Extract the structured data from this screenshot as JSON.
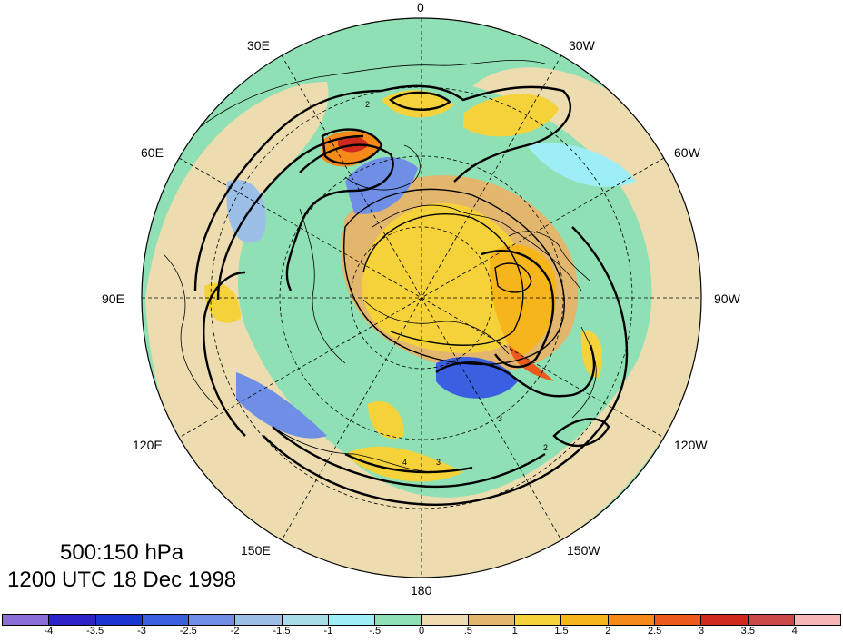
{
  "caption": {
    "level": "500:150 hPa",
    "time": "1200 UTC 18 Dec 1998"
  },
  "longitude_labels": {
    "top": "0",
    "top_left": "30E",
    "top_right": "30W",
    "upper_left": "60E",
    "upper_right": "60W",
    "left": "90E",
    "right": "90W",
    "lower_left": "120E",
    "lower_right": "120W",
    "bottom_left": "150E",
    "bottom_right": "150W",
    "bottom": "180"
  },
  "colorbar": {
    "labels": [
      "-4",
      "-3.5",
      "-3",
      "-2.5",
      "-2",
      "-1.5",
      "-1",
      "-.5",
      "0",
      ".5",
      "1",
      "1.5",
      "2",
      "2.5",
      "3",
      "3.5",
      "4"
    ],
    "colors": [
      "#8c6fd6",
      "#2d22c8",
      "#1b35d0",
      "#3a5fe0",
      "#6f8fe6",
      "#9cbfe8",
      "#a8dde6",
      "#9deef6",
      "#8fe0b5",
      "#ecdcb0",
      "#e3b66e",
      "#f6d23a",
      "#f7b51c",
      "#f58a1a",
      "#ec5a1c",
      "#d02a1e",
      "#c94848",
      "#f7b6b6"
    ]
  },
  "map": {
    "projection": "north-polar-stereographic",
    "contour_labels": [
      "2",
      "3",
      "4"
    ]
  }
}
